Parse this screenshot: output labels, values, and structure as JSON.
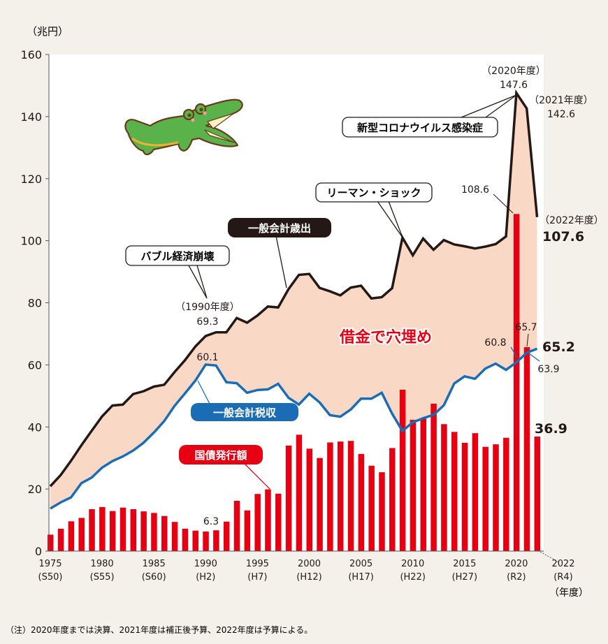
{
  "chart_data": {
    "type": "bar+line",
    "unit_label": "（兆円）",
    "x_unit_label": "（年度）",
    "ylim": [
      0,
      160
    ],
    "yticks": [
      0,
      20,
      40,
      60,
      80,
      100,
      120,
      140,
      160
    ],
    "x": [
      1975,
      1976,
      1977,
      1978,
      1979,
      1980,
      1981,
      1982,
      1983,
      1984,
      1985,
      1986,
      1987,
      1988,
      1989,
      1990,
      1991,
      1992,
      1993,
      1994,
      1995,
      1996,
      1997,
      1998,
      1999,
      2000,
      2001,
      2002,
      2003,
      2004,
      2005,
      2006,
      2007,
      2008,
      2009,
      2010,
      2011,
      2012,
      2013,
      2014,
      2015,
      2016,
      2017,
      2018,
      2019,
      2020,
      2021,
      2022
    ],
    "xticks": [
      {
        "year": 1975,
        "label": "1975",
        "era": "(S50)"
      },
      {
        "year": 1980,
        "label": "1980",
        "era": "(S55)"
      },
      {
        "year": 1985,
        "label": "1985",
        "era": "(S60)"
      },
      {
        "year": 1990,
        "label": "1990",
        "era": "(H2)"
      },
      {
        "year": 1995,
        "label": "1995",
        "era": "(H7)"
      },
      {
        "year": 2000,
        "label": "2000",
        "era": "(H12)"
      },
      {
        "year": 2005,
        "label": "2005",
        "era": "(H17)"
      },
      {
        "year": 2010,
        "label": "2010",
        "era": "(H22)"
      },
      {
        "year": 2015,
        "label": "2015",
        "era": "(H27)"
      },
      {
        "year": 2020,
        "label": "2020",
        "era": "(R2)"
      },
      {
        "year": 2022,
        "label": "2022",
        "era": "(R4)"
      }
    ],
    "series": [
      {
        "name": "一般会計歳出",
        "type": "line",
        "color": "#231815",
        "values": [
          20.9,
          24.5,
          29.1,
          34.1,
          38.8,
          43.4,
          46.9,
          47.2,
          50.6,
          51.5,
          53.0,
          53.6,
          57.7,
          61.5,
          65.9,
          69.3,
          70.5,
          70.5,
          75.1,
          73.6,
          75.9,
          78.8,
          78.5,
          84.4,
          89.0,
          89.3,
          84.8,
          83.7,
          82.4,
          84.9,
          85.5,
          81.4,
          81.8,
          84.7,
          101.0,
          95.3,
          100.7,
          97.1,
          100.2,
          98.8,
          98.2,
          97.5,
          98.1,
          98.9,
          101.4,
          147.6,
          142.6,
          107.6
        ]
      },
      {
        "name": "一般会計税収",
        "type": "line",
        "color": "#1a6db5",
        "values": [
          13.7,
          15.7,
          17.3,
          21.9,
          23.7,
          26.9,
          29.0,
          30.5,
          32.4,
          34.9,
          38.2,
          41.9,
          46.8,
          50.8,
          54.9,
          60.1,
          59.8,
          54.4,
          54.1,
          51.0,
          51.9,
          52.1,
          53.9,
          49.4,
          47.2,
          50.7,
          47.9,
          43.8,
          43.3,
          45.6,
          49.1,
          49.1,
          51.0,
          44.3,
          38.7,
          41.5,
          42.8,
          43.9,
          47.0,
          54.0,
          56.3,
          55.5,
          58.8,
          60.4,
          58.4,
          60.8,
          63.9,
          65.2
        ]
      },
      {
        "name": "国債発行額",
        "type": "bar",
        "color": "#e60012",
        "values": [
          5.3,
          7.2,
          9.6,
          10.7,
          13.5,
          14.2,
          12.9,
          14.0,
          13.5,
          12.8,
          12.3,
          11.3,
          9.4,
          7.2,
          6.6,
          6.3,
          6.7,
          9.5,
          16.2,
          13.1,
          18.4,
          19.9,
          18.5,
          34.0,
          37.5,
          33.0,
          30.0,
          35.0,
          35.3,
          35.5,
          31.3,
          27.5,
          25.4,
          33.2,
          52.0,
          42.3,
          42.8,
          47.5,
          40.9,
          38.4,
          34.9,
          38.0,
          33.6,
          34.4,
          36.5,
          108.6,
          65.7,
          36.9
        ]
      }
    ],
    "fill_between_label": "借金で穴埋め",
    "fill_color": "#f9d9c6",
    "callouts": {
      "bubble": "バブル経済崩壊",
      "expenditure": "一般会計歳出",
      "lehman": "リーマン・ショック",
      "corona": "新型コロナウイルス感染症",
      "tax": "一般会計税収",
      "bonds": "国債発行額"
    },
    "annotations": {
      "y1990_label": "（1990年度）",
      "y1990_exp": "69.3",
      "y1990_tax": "60.1",
      "y1990_bond": "6.3",
      "y2020_label": "（2020年度）",
      "y2020_exp": "147.6",
      "y2021_label": "（2021年度）",
      "y2021_exp": "142.6",
      "y2022_label": "（2022年度）",
      "y2022_exp": "107.6",
      "y2020_bond": "108.6",
      "y2021_bond": "65.7",
      "y2020_tax": "60.8",
      "y2021_tax": "63.9",
      "y2022_tax": "65.2",
      "y2022_bond": "36.9"
    },
    "grid": false,
    "legend": "none"
  },
  "note": "（注）2020年度までは決算、2021年度は補正後予算、2022年度は予算による。",
  "illustration": "alligator-with-open-mouth"
}
